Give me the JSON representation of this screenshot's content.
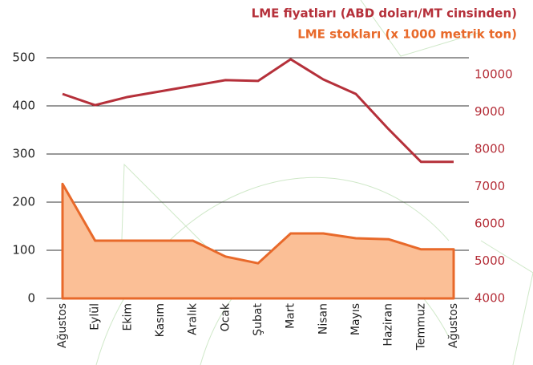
{
  "chart_data": {
    "type": "line",
    "categories": [
      "Ağustos",
      "Eylül",
      "Ekim",
      "Kasım",
      "Aralık",
      "Ocak",
      "Şubat",
      "Mart",
      "Nisan",
      "Mayıs",
      "Haziran",
      "Temmuz",
      "Ağustos"
    ],
    "series": [
      {
        "name": "LME fiyatları (ABD doları/MT cinsinden)",
        "color": "#b5303a",
        "axis": "y2",
        "values": [
          9480,
          9180,
          9400,
          9550,
          9700,
          9850,
          9830,
          10410,
          9870,
          9480,
          8540,
          7660,
          7660
        ]
      },
      {
        "name": "LME stokları (x 1000 metrik ton)",
        "color": "#e8692a",
        "fill": "#fbbf96",
        "type": "area",
        "values": [
          238,
          120,
          120,
          120,
          120,
          87,
          73,
          135,
          135,
          125,
          123,
          102,
          102
        ]
      }
    ],
    "ylim": [
      0,
      500
    ],
    "yticks": [
      0,
      100,
      200,
      300,
      400,
      500
    ],
    "y2lim": [
      4000,
      10450
    ],
    "y2ticks": [
      4000,
      5000,
      6000,
      7000,
      8000,
      9000,
      10000
    ],
    "grid": true
  }
}
